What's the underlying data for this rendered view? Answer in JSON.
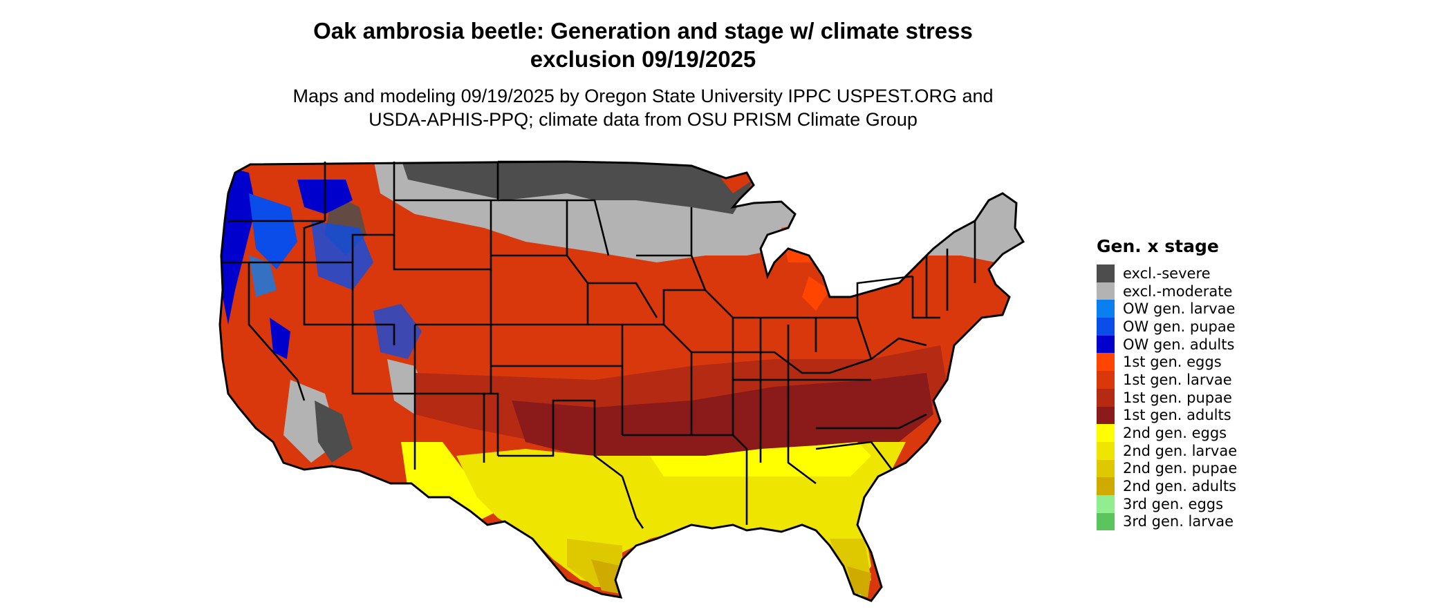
{
  "title_line1": "Oak ambrosia beetle: Generation and stage w/ climate stress",
  "title_line2": "exclusion 09/19/2025",
  "subtitle_line1": "Maps and modeling 09/19/2025 by Oregon State University IPPC USPEST.ORG and",
  "subtitle_line2": "USDA-APHIS-PPQ; climate data from OSU PRISM Climate Group",
  "legend": {
    "title": "Gen. x stage",
    "items": [
      {
        "label": "excl.-severe",
        "color": "#4d4d4d"
      },
      {
        "label": "excl.-moderate",
        "color": "#b3b3b3"
      },
      {
        "label": "OW gen. larvae",
        "color": "#0a7ff0"
      },
      {
        "label": "OW gen. pupae",
        "color": "#0a4de8"
      },
      {
        "label": "OW gen. adults",
        "color": "#0000cd"
      },
      {
        "label": "1st gen. eggs",
        "color": "#ff4500"
      },
      {
        "label": "1st gen. larvae",
        "color": "#d9380d"
      },
      {
        "label": "1st gen. pupae",
        "color": "#b52a13"
      },
      {
        "label": "1st gen. adults",
        "color": "#8b1a1a"
      },
      {
        "label": "2nd gen. eggs",
        "color": "#ffff00"
      },
      {
        "label": "2nd gen. larvae",
        "color": "#eee600"
      },
      {
        "label": "2nd gen. pupae",
        "color": "#dec800"
      },
      {
        "label": "2nd gen. adults",
        "color": "#cfaa00"
      },
      {
        "label": "3rd gen. eggs",
        "color": "#90ee90"
      },
      {
        "label": "3rd gen. larvae",
        "color": "#5cc45c"
      }
    ]
  }
}
